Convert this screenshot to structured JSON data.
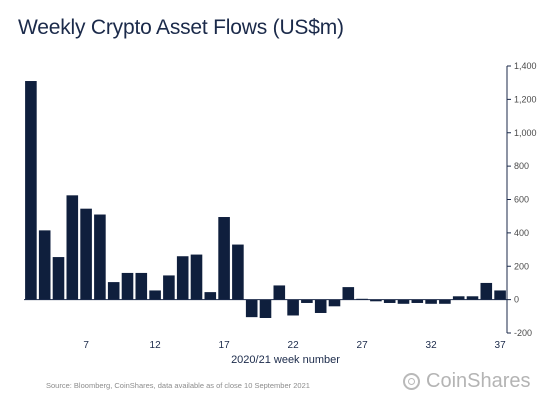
{
  "header": {
    "title": "Weekly Crypto Asset Flows (US$m)"
  },
  "footer": {
    "source": "Source: Bloomberg, CoinShares, data available as of close 10 September 2021",
    "brand": "CoinShares"
  },
  "colors": {
    "bar": "#0f1f3d",
    "axis": "#1b2a4a",
    "title": "#1b2a4a",
    "source": "#8c8c8c",
    "logo": "#b4b4b4"
  },
  "chart_data": {
    "type": "bar",
    "title": "Weekly Crypto Asset Flows (US$m)",
    "xlabel": "2020/21 week number",
    "ylabel": "",
    "x": [
      3,
      4,
      5,
      6,
      7,
      8,
      9,
      10,
      11,
      12,
      13,
      14,
      15,
      16,
      17,
      18,
      19,
      20,
      21,
      22,
      23,
      24,
      25,
      26,
      27,
      28,
      29,
      30,
      31,
      32,
      33,
      34,
      35,
      36,
      37
    ],
    "values": [
      1310,
      415,
      255,
      625,
      545,
      510,
      105,
      160,
      160,
      55,
      145,
      260,
      270,
      45,
      495,
      330,
      -105,
      -110,
      85,
      -95,
      -20,
      -80,
      -40,
      75,
      5,
      -10,
      -20,
      -25,
      -20,
      -25,
      -25,
      20,
      20,
      100,
      55
    ],
    "xticks": [
      "7",
      "12",
      "17",
      "22",
      "27",
      "32",
      "37"
    ],
    "yticks": [
      "-200",
      "0",
      "200",
      "400",
      "600",
      "800",
      "1,000",
      "1,200",
      "1,400"
    ],
    "ylim": [
      -200,
      1400
    ],
    "y_axis_position": "right",
    "grid": false,
    "legend": "none"
  }
}
